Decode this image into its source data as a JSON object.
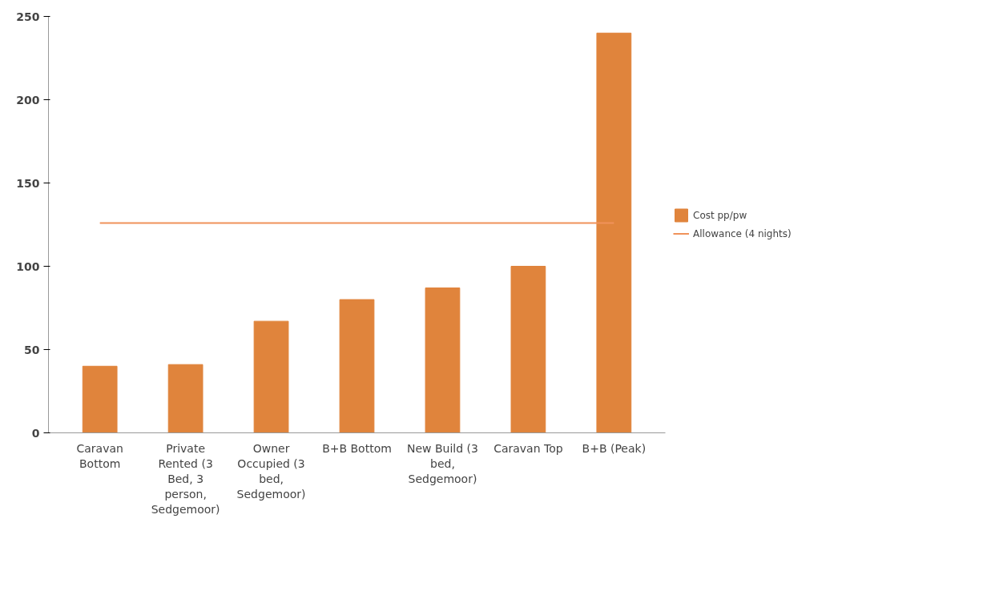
{
  "chart_data": {
    "type": "bar",
    "categories": [
      "Caravan Bottom",
      "Private Rented (3 Bed, 3 person, Sedgemoor)",
      "Owner Occupied (3 bed, Sedgemoor)",
      "B+B Bottom",
      "New Build (3 bed, Sedgemoor)",
      "Caravan Top",
      "B+B (Peak)"
    ],
    "series": [
      {
        "name": "Cost pp/pw",
        "color": "#e0843c",
        "values": [
          40,
          41,
          67,
          80,
          87,
          100,
          240
        ]
      },
      {
        "name": "Allowance (4 nights)",
        "type": "line",
        "color": "#f0925a",
        "values": [
          126,
          126,
          126,
          126,
          126,
          126,
          126
        ]
      }
    ],
    "ylim": [
      0,
      250
    ],
    "yticks": [
      0,
      50,
      100,
      150,
      200,
      250
    ],
    "grid": false,
    "legend": "right"
  }
}
